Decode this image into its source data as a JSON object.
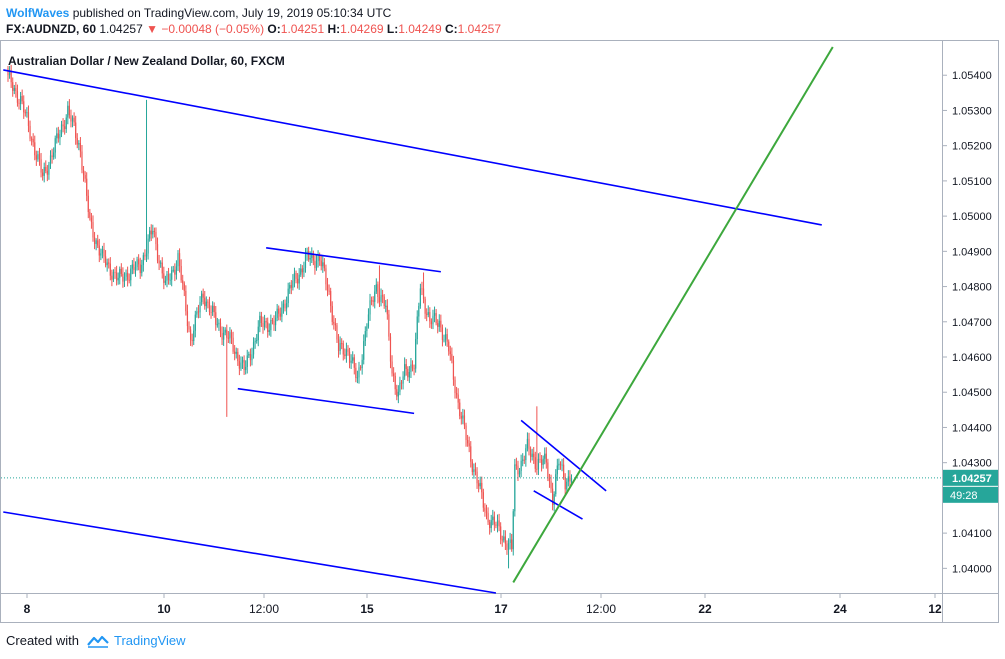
{
  "header": {
    "author": "WolfWaves",
    "published": "published on TradingView.com, July 19, 2019 05:10:34 UTC"
  },
  "ohlc": {
    "symbol": "FX:AUDNZD, 60",
    "last": "1.04257",
    "change": "−0.00048 (−0.05%)",
    "o_label": "O:",
    "o": "1.04251",
    "h_label": "H:",
    "h": "1.04269",
    "l_label": "L:",
    "l": "1.04249",
    "c_label": "C:",
    "c": "1.04257"
  },
  "footer": {
    "created_with": "Created with",
    "brand": "TradingView"
  },
  "colors": {
    "up": "#26a69a",
    "down": "#ef5350",
    "channel": "#0000ff",
    "trend": "#3da83d",
    "price_label_bg": "#26a69a"
  },
  "chart_data": {
    "type": "candlestick",
    "title": "Australian Dollar / New Zealand Dollar, 60, FXCM",
    "x_ticks": [
      "8",
      "10",
      "12:00",
      "15",
      "17",
      "12:00",
      "22",
      "24",
      "12"
    ],
    "y_ticks": [
      "1.05400",
      "1.05300",
      "1.05200",
      "1.05100",
      "1.05000",
      "1.04900",
      "1.04800",
      "1.04700",
      "1.04600",
      "1.04500",
      "1.04400",
      "1.04300",
      "1.04100",
      "1.04000"
    ],
    "ylim": [
      1.0393,
      1.055
    ],
    "last_price": "1.04257",
    "countdown": "49:28",
    "price_anchors": [
      [
        0,
        1.0539
      ],
      [
        8,
        1.0533
      ],
      [
        14,
        1.0524
      ],
      [
        22,
        1.0511
      ],
      [
        30,
        1.052
      ],
      [
        38,
        1.053
      ],
      [
        46,
        1.0519
      ],
      [
        52,
        1.0498
      ],
      [
        60,
        1.0488
      ],
      [
        70,
        1.0482
      ],
      [
        84,
        1.0486
      ],
      [
        92,
        1.0496
      ],
      [
        100,
        1.048
      ],
      [
        108,
        1.0488
      ],
      [
        116,
        1.0465
      ],
      [
        124,
        1.0478
      ],
      [
        132,
        1.047
      ],
      [
        142,
        1.0464
      ],
      [
        150,
        1.0456
      ],
      [
        160,
        1.0469
      ],
      [
        170,
        1.047
      ],
      [
        180,
        1.048
      ],
      [
        190,
        1.0488
      ],
      [
        198,
        1.0488
      ],
      [
        204,
        1.0478
      ],
      [
        210,
        1.0462
      ],
      [
        216,
        1.0462
      ],
      [
        222,
        1.0453
      ],
      [
        228,
        1.047
      ],
      [
        234,
        1.048
      ],
      [
        240,
        1.0474
      ],
      [
        244,
        1.0456
      ],
      [
        248,
        1.0449
      ],
      [
        252,
        1.0456
      ],
      [
        258,
        1.0458
      ],
      [
        262,
        1.048
      ],
      [
        268,
        1.047
      ],
      [
        274,
        1.047
      ],
      [
        280,
        1.0462
      ],
      [
        286,
        1.0447
      ],
      [
        292,
        1.0435
      ],
      [
        298,
        1.0425
      ],
      [
        304,
        1.0415
      ],
      [
        310,
        1.0412
      ],
      [
        316,
        1.0408
      ],
      [
        320,
        1.0405
      ],
      [
        322,
        1.0428
      ],
      [
        326,
        1.043
      ],
      [
        330,
        1.0434
      ],
      [
        336,
        1.043
      ],
      [
        342,
        1.043
      ],
      [
        346,
        1.042
      ],
      [
        350,
        1.043
      ],
      [
        354,
        1.0425
      ],
      [
        358,
        1.04262
      ]
    ],
    "spikes": [
      {
        "i": 88,
        "high": 1.0533
      },
      {
        "i": 139,
        "low": 1.0443
      },
      {
        "i": 236,
        "high": 1.0486
      },
      {
        "i": 264,
        "high": 1.0484
      },
      {
        "i": 318,
        "low": 1.04
      },
      {
        "i": 336,
        "high": 1.0446
      }
    ],
    "drawings": [
      {
        "name": "upper-channel-line",
        "color": "#0000ff",
        "from": [
          -3,
          1.05415
        ],
        "to": [
          517,
          1.04975
        ]
      },
      {
        "name": "lower-channel-line",
        "color": "#0000ff",
        "from": [
          -3,
          1.0416
        ],
        "to": [
          310,
          1.0393
        ]
      },
      {
        "name": "flag-top-line",
        "color": "#0000ff",
        "from": [
          164,
          1.0491
        ],
        "to": [
          275,
          1.04842
        ]
      },
      {
        "name": "flag-bottom-line",
        "color": "#0000ff",
        "from": [
          146,
          1.0451
        ],
        "to": [
          258,
          1.0444
        ]
      },
      {
        "name": "wedge-top-line",
        "color": "#0000ff",
        "from": [
          326,
          1.0442
        ],
        "to": [
          380,
          1.0422
        ]
      },
      {
        "name": "wedge-bottom-line",
        "color": "#0000ff",
        "from": [
          334,
          1.0422
        ],
        "to": [
          365,
          1.0414
        ]
      },
      {
        "name": "green-trend-line",
        "color": "#3da83d",
        "from": [
          321,
          1.0396
        ],
        "to": [
          524,
          1.0548
        ]
      }
    ]
  }
}
